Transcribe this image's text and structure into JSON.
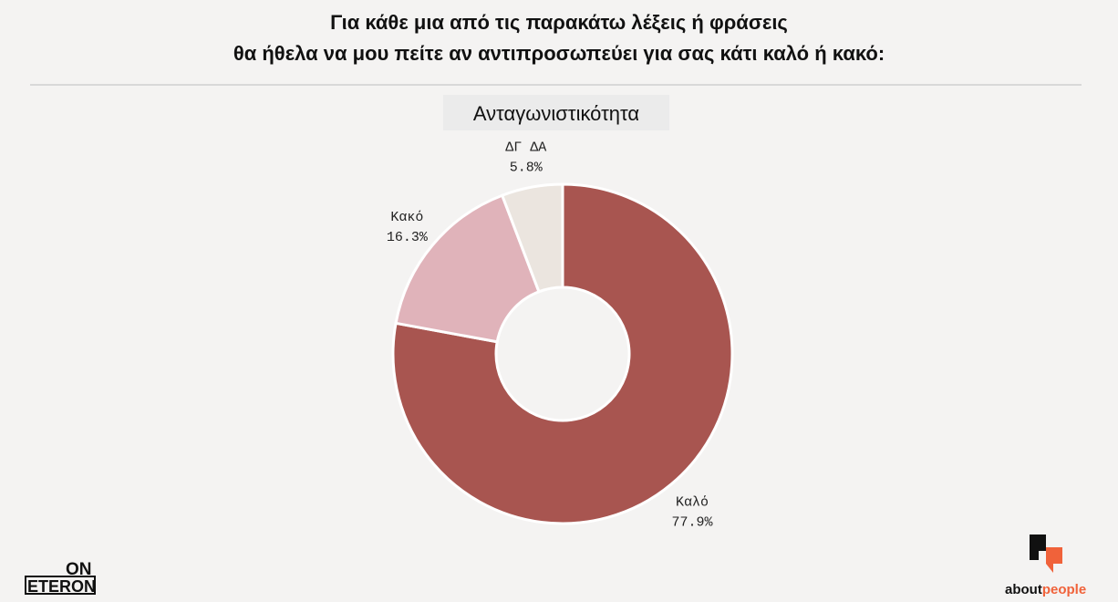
{
  "chart_data": {
    "type": "donut",
    "title": [
      "Για κάθε μια από τις παρακάτω λέξεις ή φράσεις",
      "θα ήθελα να μου πείτε αν αντιπροσωπεύει για σας κάτι καλό ή κακό:"
    ],
    "subtitle": "Ανταγωνιστικότητα",
    "categories": [
      "Καλό",
      "Κακό",
      "ΔΓ ΔΑ"
    ],
    "values": [
      77.9,
      16.3,
      5.8
    ],
    "value_labels": [
      "77.9%",
      "16.3%",
      "5.8%"
    ],
    "colors": [
      "#a85550",
      "#e0b3ba",
      "#ebe5df"
    ]
  },
  "logos": {
    "left": [
      "ON",
      "ETERON"
    ],
    "right": [
      "about",
      "people"
    ]
  }
}
